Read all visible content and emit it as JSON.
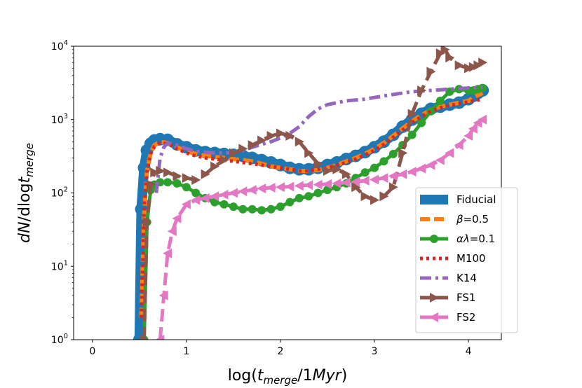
{
  "chart_data": {
    "type": "line",
    "title": "",
    "xlabel": {
      "base": "log(",
      "var": "t",
      "sub": "merge",
      "tail": "/1",
      "unit": "Myr",
      "close": ")"
    },
    "ylabel": {
      "var": "dN",
      "mid": "/dlog",
      "t": "t",
      "sub": "merge"
    },
    "xlim": [
      -0.2,
      4.35
    ],
    "ylim": [
      1,
      10000
    ],
    "yscale": "log",
    "xticks": [
      0,
      1,
      2,
      3,
      4
    ],
    "yticks": [
      {
        "base": "10",
        "exp": "0",
        "value": 1
      },
      {
        "base": "10",
        "exp": "1",
        "value": 10
      },
      {
        "base": "10",
        "exp": "2",
        "value": 100
      },
      {
        "base": "10",
        "exp": "3",
        "value": 1000
      },
      {
        "base": "10",
        "exp": "4",
        "value": 10000
      }
    ],
    "legend_position": "lower-right",
    "series": [
      {
        "name": "Fiducial",
        "label": "Fiducial",
        "color": "#1f77b4",
        "style": "thick",
        "x": [
          0.5,
          0.52,
          0.55,
          0.58,
          0.62,
          0.66,
          0.72,
          0.8,
          0.9,
          1.0,
          1.1,
          1.2,
          1.3,
          1.4,
          1.5,
          1.6,
          1.7,
          1.8,
          1.9,
          2.0,
          2.1,
          2.2,
          2.3,
          2.4,
          2.5,
          2.6,
          2.7,
          2.8,
          2.9,
          3.0,
          3.1,
          3.2,
          3.3,
          3.4,
          3.5,
          3.6,
          3.7,
          3.8,
          3.9,
          4.0,
          4.05,
          4.1,
          4.15
        ],
        "y": [
          1,
          60,
          220,
          380,
          470,
          520,
          540,
          530,
          460,
          420,
          380,
          360,
          350,
          340,
          330,
          320,
          300,
          280,
          260,
          240,
          220,
          210,
          210,
          220,
          240,
          260,
          290,
          320,
          360,
          420,
          500,
          620,
          800,
          1000,
          1200,
          1400,
          1500,
          1600,
          1700,
          1900,
          2100,
          2300,
          2500
        ]
      },
      {
        "name": "beta",
        "label_math": "β",
        "label_text": "=0.5",
        "color": "#ff7f0e",
        "style": "dashed",
        "x": [
          0.52,
          0.55,
          0.58,
          0.62,
          0.66,
          0.72,
          0.8,
          0.9,
          1.0,
          1.1,
          1.2,
          1.3,
          1.4,
          1.5,
          1.6,
          1.7,
          1.8,
          1.9,
          2.0,
          2.1,
          2.2,
          2.3,
          2.4,
          2.5,
          2.6,
          2.7,
          2.8,
          2.9,
          3.0,
          3.1,
          3.2,
          3.3,
          3.4,
          3.5,
          3.6,
          3.7,
          3.8,
          3.9,
          4.0,
          4.05,
          4.1,
          4.15
        ],
        "y": [
          2,
          50,
          200,
          350,
          450,
          500,
          480,
          420,
          370,
          340,
          320,
          310,
          300,
          290,
          280,
          270,
          250,
          230,
          220,
          210,
          200,
          200,
          205,
          220,
          240,
          270,
          300,
          340,
          400,
          480,
          600,
          760,
          950,
          1150,
          1350,
          1500,
          1600,
          1700,
          1800,
          2000,
          2150,
          2300
        ]
      },
      {
        "name": "alphalambda",
        "label_math": "αλ",
        "label_text": "=0.1",
        "color": "#2ca02c",
        "style": "dots",
        "x": [
          0.55,
          0.58,
          0.62,
          0.66,
          0.72,
          0.8,
          0.9,
          1.0,
          1.1,
          1.2,
          1.3,
          1.4,
          1.5,
          1.6,
          1.7,
          1.8,
          1.9,
          2.0,
          2.1,
          2.2,
          2.3,
          2.4,
          2.5,
          2.6,
          2.7,
          2.8,
          2.9,
          3.0,
          3.1,
          3.2,
          3.3,
          3.4,
          3.5,
          3.6,
          3.7,
          3.8,
          3.9,
          4.0,
          4.05,
          4.1,
          4.15
        ],
        "y": [
          1,
          40,
          110,
          130,
          140,
          140,
          135,
          120,
          100,
          85,
          75,
          70,
          65,
          60,
          60,
          58,
          60,
          65,
          75,
          85,
          90,
          100,
          110,
          120,
          135,
          160,
          190,
          220,
          270,
          340,
          450,
          620,
          900,
          1300,
          1800,
          2400,
          2600,
          2500,
          2500,
          2600,
          2700
        ]
      },
      {
        "name": "M100",
        "label": "M100",
        "color": "#d62728",
        "style": "dotted",
        "x": [
          0.52,
          0.55,
          0.58,
          0.62,
          0.66,
          0.72,
          0.8,
          0.9,
          1.0,
          1.1,
          1.2,
          1.3,
          1.4,
          1.5,
          1.6,
          1.7,
          1.8,
          1.9,
          2.0,
          2.1,
          2.2,
          2.3,
          2.4,
          2.5,
          2.6,
          2.7,
          2.8,
          2.9,
          3.0,
          3.1,
          3.2,
          3.3,
          3.4,
          3.5,
          3.6,
          3.7,
          3.8,
          3.9,
          4.0,
          4.05,
          4.1,
          4.15
        ],
        "y": [
          2,
          60,
          200,
          340,
          430,
          480,
          470,
          400,
          350,
          320,
          300,
          290,
          280,
          270,
          260,
          250,
          240,
          230,
          220,
          210,
          200,
          200,
          210,
          220,
          240,
          260,
          290,
          330,
          380,
          460,
          570,
          720,
          900,
          1100,
          1300,
          1450,
          1550,
          1650,
          1750,
          1800,
          1850,
          1900
        ]
      },
      {
        "name": "K14",
        "label": "K14",
        "color": "#9467bd",
        "style": "dashdot",
        "x": [
          0.68,
          0.72,
          0.76,
          0.8,
          0.9,
          1.0,
          1.1,
          1.2,
          1.3,
          1.4,
          1.5,
          1.6,
          1.7,
          1.8,
          1.9,
          2.0,
          2.1,
          2.2,
          2.3,
          2.4,
          2.5,
          2.6,
          2.7,
          2.8,
          2.9,
          3.0,
          3.1,
          3.2,
          3.3,
          3.4,
          3.5,
          3.6,
          3.7,
          3.8,
          3.9,
          4.0,
          4.05,
          4.1,
          4.15
        ],
        "y": [
          100,
          300,
          420,
          480,
          450,
          400,
          370,
          360,
          350,
          350,
          360,
          380,
          420,
          460,
          500,
          560,
          650,
          800,
          1100,
          1400,
          1600,
          1700,
          1800,
          1850,
          1900,
          2000,
          2100,
          2200,
          2300,
          2400,
          2450,
          2500,
          2550,
          2600,
          2650,
          2700,
          2700,
          2750,
          2800
        ]
      },
      {
        "name": "FS1",
        "label": "FS1",
        "color": "#8c564b",
        "style": "triangles-right",
        "x": [
          0.55,
          0.58,
          0.62,
          0.66,
          0.72,
          0.8,
          0.9,
          1.0,
          1.1,
          1.2,
          1.3,
          1.4,
          1.5,
          1.6,
          1.7,
          1.8,
          1.9,
          2.0,
          2.1,
          2.2,
          2.3,
          2.4,
          2.5,
          2.6,
          2.7,
          2.8,
          2.9,
          3.0,
          3.1,
          3.2,
          3.3,
          3.4,
          3.5,
          3.6,
          3.7,
          3.75,
          3.8,
          3.9,
          4.0,
          4.05,
          4.1,
          4.15
        ],
        "y": [
          1,
          40,
          130,
          190,
          200,
          190,
          170,
          160,
          150,
          180,
          230,
          280,
          350,
          400,
          450,
          520,
          600,
          650,
          600,
          500,
          350,
          250,
          200,
          210,
          180,
          120,
          90,
          80,
          90,
          120,
          350,
          1200,
          2500,
          4500,
          8000,
          9000,
          7000,
          5500,
          5000,
          5200,
          5500,
          6000
        ]
      },
      {
        "name": "FS2",
        "label": "FS2",
        "color": "#e377c2",
        "style": "triangles-left",
        "x": [
          0.72,
          0.76,
          0.8,
          0.85,
          0.9,
          1.0,
          1.1,
          1.2,
          1.3,
          1.4,
          1.5,
          1.6,
          1.7,
          1.8,
          1.9,
          2.0,
          2.1,
          2.2,
          2.3,
          2.4,
          2.5,
          2.6,
          2.7,
          2.8,
          2.9,
          3.0,
          3.1,
          3.2,
          3.3,
          3.4,
          3.5,
          3.6,
          3.7,
          3.8,
          3.9,
          4.0,
          4.05,
          4.1,
          4.15
        ],
        "y": [
          1,
          4,
          15,
          30,
          45,
          70,
          80,
          85,
          90,
          95,
          100,
          105,
          110,
          115,
          118,
          120,
          122,
          125,
          128,
          130,
          132,
          135,
          138,
          142,
          147,
          152,
          160,
          170,
          180,
          195,
          215,
          240,
          280,
          350,
          450,
          600,
          750,
          900,
          1000
        ]
      }
    ]
  }
}
